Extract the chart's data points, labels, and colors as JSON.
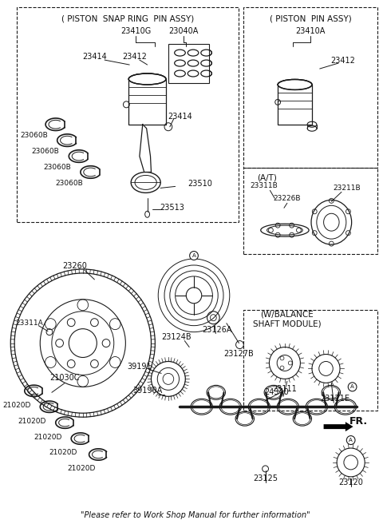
{
  "figsize": [
    4.8,
    6.56
  ],
  "dpi": 100,
  "bg": "#ffffff",
  "lc": "#1a1a1a",
  "tc": "#111111",
  "footer": "\"Please refer to Work Shop Manual for further information\"",
  "labels": {
    "snap_ring_title": "( PISTON  SNAP RING  PIN ASSY)",
    "pin_assy_title": "( PISTON  PIN ASSY)",
    "at_title": "(A/T)",
    "balance_title": "(W/BALANCE\nSHAFT MODULE)",
    "fr": "FR.",
    "23410G": "23410G",
    "23040A": "23040A",
    "23414a": "23414",
    "23412a": "23412",
    "23414b": "23414",
    "23410A": "23410A",
    "23412b": "23412",
    "23060B": "23060B",
    "23510": "23510",
    "23513": "23513",
    "23311B": "23311B",
    "23211B": "23211B",
    "23226B": "23226B",
    "23260": "23260",
    "23311A": "23311A",
    "23124B": "23124B",
    "23126A": "23126A",
    "23127B": "23127B",
    "24340": "24340",
    "23121E": "23121E",
    "39191": "39191",
    "39190A": "39190A",
    "23111": "23111",
    "21030C": "21030C",
    "21020D": "21020D",
    "23125": "23125",
    "23120": "23120"
  }
}
